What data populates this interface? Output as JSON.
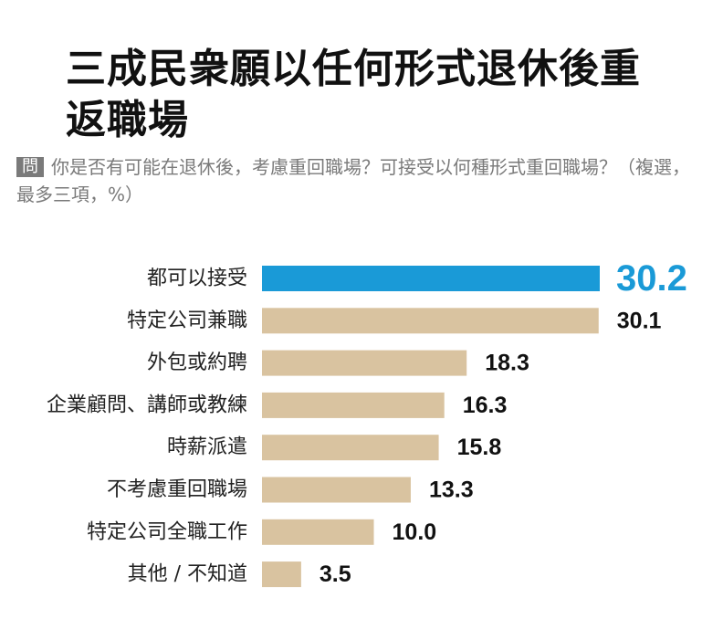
{
  "title": "三成民衆願以任何形式退休後重返職場",
  "question": {
    "badge": "問",
    "text": "你是否有可能在退休後，考慮重回職場？可接受以何種形式重回職場？（複選，最多三項，%）"
  },
  "colors": {
    "highlight_bar": "#1a9ad7",
    "bar": "#d9c3a0",
    "highlight_label": "#1a9ad7",
    "label": "#111111"
  },
  "chart_data": {
    "type": "bar",
    "orientation": "horizontal",
    "categories": [
      "都可以接受",
      "特定公司兼職",
      "外包或約聘",
      "企業顧問、講師或教練",
      "時薪派遣",
      "不考慮重回職場",
      "特定公司全職工作",
      "其他 / 不知道"
    ],
    "values": [
      30.2,
      30.1,
      18.3,
      16.3,
      15.8,
      13.3,
      10.0,
      3.5
    ],
    "value_labels": [
      "30.2",
      "30.1",
      "18.3",
      "16.3",
      "15.8",
      "13.3",
      "10.0",
      "3.5"
    ],
    "highlight_index": 0,
    "xlim": [
      0,
      30.2
    ],
    "grid": false,
    "legend": "none"
  }
}
